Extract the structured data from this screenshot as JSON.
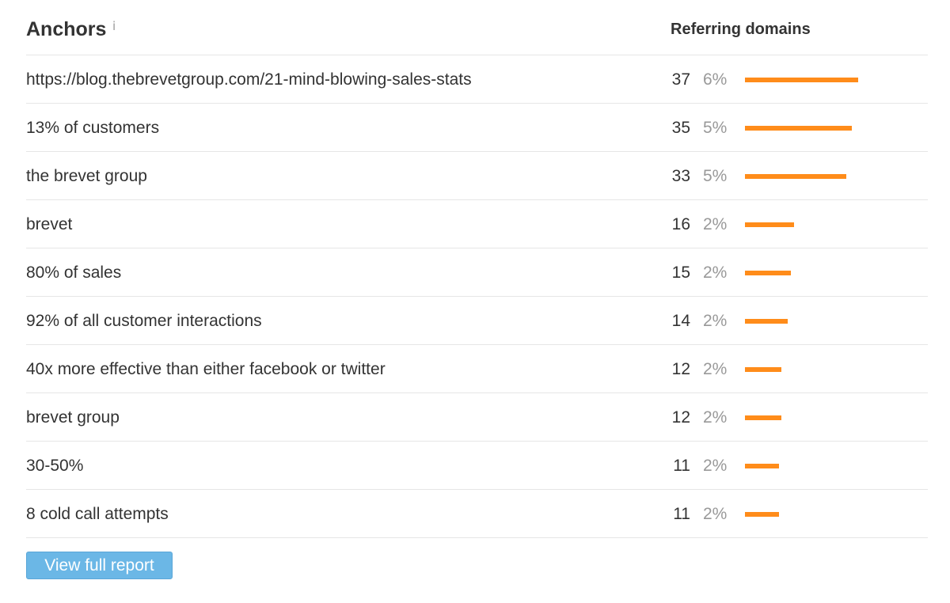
{
  "header": {
    "title": "Anchors",
    "info_icon": "i",
    "column_label": "Referring domains"
  },
  "rows": [
    {
      "anchor": "https://blog.thebrevetgroup.com/21-mind-blowing-sales-stats",
      "count": "37",
      "percent": "6%",
      "bar_value": 37
    },
    {
      "anchor": "13% of customers",
      "count": "35",
      "percent": "5%",
      "bar_value": 35
    },
    {
      "anchor": "the brevet group",
      "count": "33",
      "percent": "5%",
      "bar_value": 33
    },
    {
      "anchor": "brevet",
      "count": "16",
      "percent": "2%",
      "bar_value": 16
    },
    {
      "anchor": "80% of sales",
      "count": "15",
      "percent": "2%",
      "bar_value": 15
    },
    {
      "anchor": "92% of all customer interactions",
      "count": "14",
      "percent": "2%",
      "bar_value": 14
    },
    {
      "anchor": "40x more effective than either facebook or twitter",
      "count": "12",
      "percent": "2%",
      "bar_value": 12
    },
    {
      "anchor": "brevet group",
      "count": "12",
      "percent": "2%",
      "bar_value": 12
    },
    {
      "anchor": "30-50%",
      "count": "11",
      "percent": "2%",
      "bar_value": 11
    },
    {
      "anchor": "8 cold call attempts",
      "count": "11",
      "percent": "2%",
      "bar_value": 11
    }
  ],
  "footer": {
    "button_label": "View full report"
  },
  "colors": {
    "bar": "#ff8c1a",
    "button": "#6bb7e6"
  }
}
